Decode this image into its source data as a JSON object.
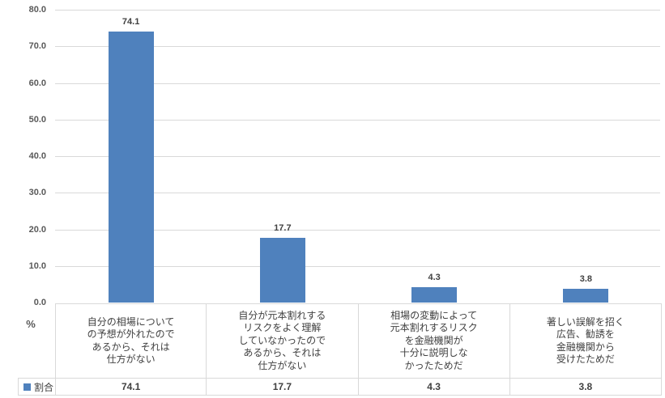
{
  "chart_data": {
    "type": "bar",
    "title": "",
    "xlabel": "",
    "ylabel": "%",
    "ylim": [
      0,
      80
    ],
    "ytick_step": 10,
    "ytick_labels": [
      "0.0",
      "10.0",
      "20.0",
      "30.0",
      "40.0",
      "50.0",
      "60.0",
      "70.0",
      "80.0"
    ],
    "grid": true,
    "legend_position": "bottom-table",
    "categories": [
      "自分の相場についての予想が外れたのであるから、それは仕方がない",
      "自分が元本割れするリスクをよく理解していなかったのであるから、それは仕方がない",
      "相場の変動によって元本割れするリスクを金融機関が十分に説明しなかったためだ",
      "著しい誤解を招く広告、勧誘を金融機関から受けたためだ"
    ],
    "categories_lines": [
      [
        "自分の相場について",
        "の予想が外れたので",
        "あるから、それは",
        "仕方がない"
      ],
      [
        "自分が元本割れする",
        "リスクをよく理解",
        "していなかったので",
        "あるから、それは",
        "仕方がない"
      ],
      [
        "相場の変動によって",
        "元本割れするリスク",
        "を金融機関が",
        "十分に説明しな",
        "かったためだ"
      ],
      [
        "著しい誤解を招く",
        "広告、勧誘を",
        "金融機関から",
        "受けたためだ"
      ]
    ],
    "series": [
      {
        "name": "割合",
        "values": [
          74.1,
          17.7,
          4.3,
          3.8
        ]
      }
    ],
    "value_labels": [
      "74.1",
      "17.7",
      "4.3",
      "3.8"
    ]
  },
  "colors": {
    "bar": "#4F81BD",
    "gridline": "#D9D9D9",
    "table_border": "#D9D9D9",
    "axis_text": "#595959",
    "value_text": "#404040",
    "category_text": "#404040"
  }
}
